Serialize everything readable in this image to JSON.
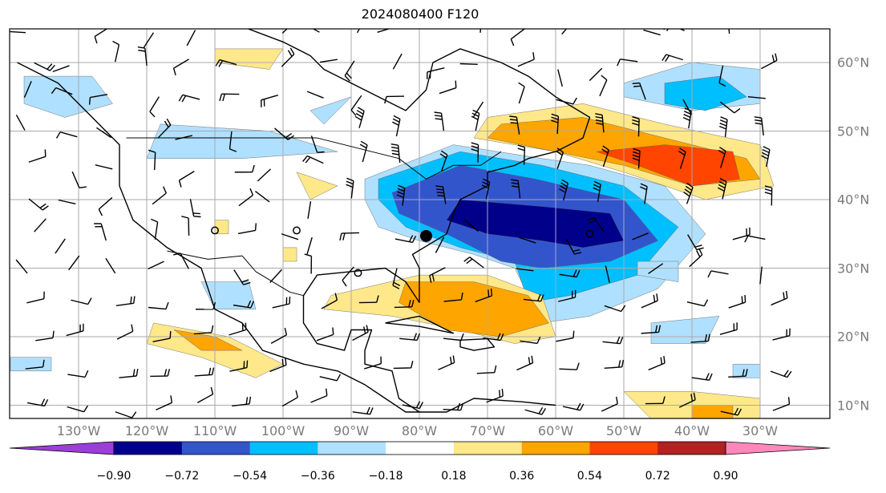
{
  "title": "2024080400 F120",
  "lon_labels": [
    "130°W",
    "120°W",
    "110°W",
    "100°W",
    "90°W",
    "80°W",
    "70°W",
    "60°W",
    "50°W",
    "40°W",
    "30°W"
  ],
  "lat_labels": [
    "60°N",
    "50°N",
    "40°N",
    "30°N",
    "20°N",
    "10°N"
  ],
  "colorbar": {
    "labels": [
      "−0.90",
      "−0.72",
      "−0.54",
      "−0.36",
      "−0.18",
      "0.18",
      "0.36",
      "0.54",
      "0.72",
      "0.90"
    ],
    "colors": [
      "#9b3fd6",
      "#00008b",
      "#3355cc",
      "#00bfff",
      "#b0e0ff",
      "#ffffff",
      "#ffe88a",
      "#ffa500",
      "#ff4500",
      "#b22222",
      "#ff88bb"
    ]
  },
  "shading_colors": {
    "neg_strong": "#00008b",
    "neg_med": "#3355cc",
    "neg": "#00bfff",
    "neg_light": "#b0e0ff",
    "pos_light": "#ffe88a",
    "pos": "#ffa500",
    "pos_strong": "#ff4500"
  }
}
